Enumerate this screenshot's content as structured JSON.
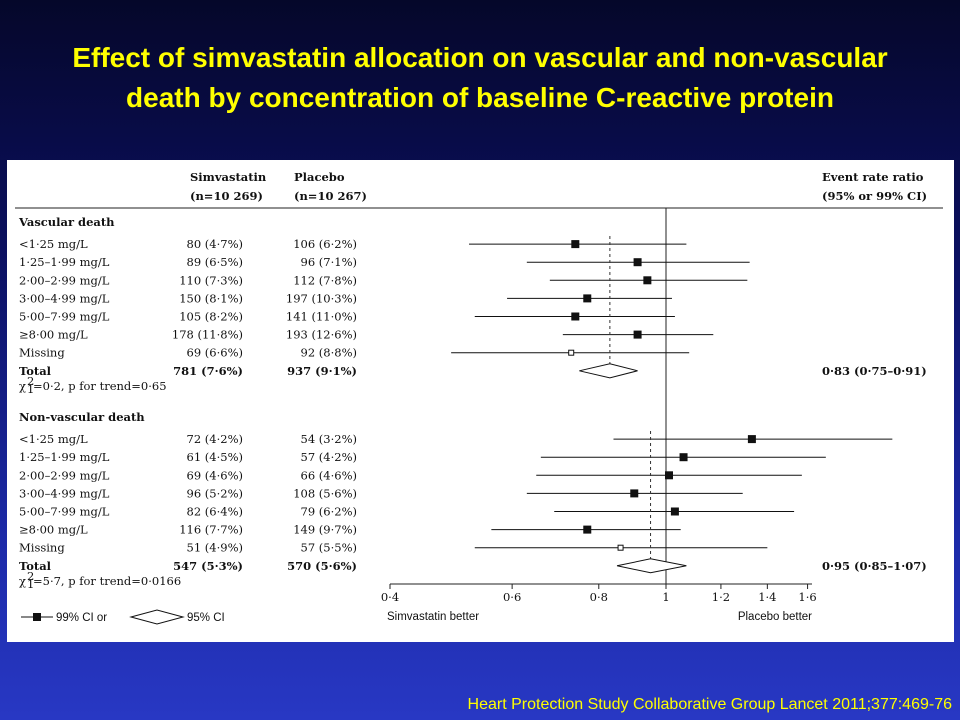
{
  "title": {
    "line1": "Effect of simvastatin allocation on vascular and non-vascular",
    "line2": "death by concentration of baseline C-reactive protein"
  },
  "citation": "Heart Protection Study Collaborative Group Lancet 2011;377:469-76",
  "chart_data": {
    "type": "forest",
    "columns": {
      "simva": "Simvastatin",
      "simva_n": "(n=10 269)",
      "placebo": "Placebo",
      "placebo_n": "(n=10 267)",
      "rr": "Event rate ratio",
      "rr_ci": "(95% or 99% CI)"
    },
    "xaxis": {
      "ticks": [
        "0·4",
        "0·6",
        "0·8",
        "1",
        "1·2",
        "1·4",
        "1·6"
      ],
      "tick_values": [
        0.4,
        0.6,
        0.8,
        1.0,
        1.2,
        1.4,
        1.6
      ],
      "scale": "log",
      "left_label": "Simvastatin better",
      "right_label": "Placebo better"
    },
    "sections": [
      {
        "heading": "Vascular death",
        "rows": [
          {
            "label": "<1·25 mg/L",
            "simva": "80 (4·7%)",
            "placebo": "106 (6·2%)",
            "rr": 0.74,
            "lo": 0.52,
            "hi": 1.07,
            "box": "filled"
          },
          {
            "label": "1·25–1·99  mg/L",
            "simva": "89 (6·5%)",
            "placebo": "96 (7·1%)",
            "rr": 0.91,
            "lo": 0.63,
            "hi": 1.32,
            "box": "filled"
          },
          {
            "label": "2·00–2·99  mg/L",
            "simva": "110 (7·3%)",
            "placebo": "112 (7·8%)",
            "rr": 0.94,
            "lo": 0.68,
            "hi": 1.31,
            "box": "filled"
          },
          {
            "label": "3·00–4·99  mg/L",
            "simva": "150 (8·1%)",
            "placebo": "197 (10·3%)",
            "rr": 0.77,
            "lo": 0.59,
            "hi": 1.02,
            "box": "filled"
          },
          {
            "label": "5·00–7·99  mg/L",
            "simva": "105 (8·2%)",
            "placebo": "141 (11·0%)",
            "rr": 0.74,
            "lo": 0.53,
            "hi": 1.03,
            "box": "filled"
          },
          {
            "label": "≥8·00 mg/L",
            "simva": "178 (11·8%)",
            "placebo": "193 (12·6%)",
            "rr": 0.91,
            "lo": 0.71,
            "hi": 1.17,
            "box": "filled"
          },
          {
            "label": "Missing",
            "simva": "69 (6·6%)",
            "placebo": "92 (8·8%)",
            "rr": 0.73,
            "lo": 0.49,
            "hi": 1.08,
            "box": "open"
          }
        ],
        "total": {
          "label": "Total",
          "simva": "781 (7·6%)",
          "placebo": "937 (9·1%)",
          "rr": 0.83,
          "lo": 0.75,
          "hi": 0.91,
          "ci_text": "0·83 (0·75–0·91)"
        },
        "trend_label": "χ",
        "trend_sub": "1",
        "trend_sup": "2",
        "trend_text": "=0·2, p for trend=0·65"
      },
      {
        "heading": "Non-vascular death",
        "rows": [
          {
            "label": "<1·25 mg/L",
            "simva": "72 (4·2%)",
            "placebo": "54 (3·2%)",
            "rr": 1.33,
            "lo": 0.84,
            "hi": 2.12,
            "box": "filled"
          },
          {
            "label": "1·25–1·99  mg/L",
            "simva": "61 (4·5%)",
            "placebo": "57 (4·2%)",
            "rr": 1.06,
            "lo": 0.66,
            "hi": 1.7,
            "box": "filled"
          },
          {
            "label": "2·00–2·99  mg/L",
            "simva": "69 (4·6%)",
            "placebo": "66 (4·6%)",
            "rr": 1.01,
            "lo": 0.65,
            "hi": 1.57,
            "box": "filled"
          },
          {
            "label": "3·00–4·99  mg/L",
            "simva": "96 (5·2%)",
            "placebo": "108 (5·6%)",
            "rr": 0.9,
            "lo": 0.63,
            "hi": 1.29,
            "box": "filled"
          },
          {
            "label": "5·00–7·99  mg/L",
            "simva": "82 (6·4%)",
            "placebo": "79 (6·2%)",
            "rr": 1.03,
            "lo": 0.69,
            "hi": 1.53,
            "box": "filled"
          },
          {
            "label": "≥8·00 mg/L",
            "simva": "116 (7·7%)",
            "placebo": "149 (9·7%)",
            "rr": 0.77,
            "lo": 0.56,
            "hi": 1.05,
            "box": "filled"
          },
          {
            "label": "Missing",
            "simva": "51 (4·9%)",
            "placebo": "57 (5·5%)",
            "rr": 0.86,
            "lo": 0.53,
            "hi": 1.4,
            "box": "open"
          }
        ],
        "total": {
          "label": "Total",
          "simva": "547 (5·3%)",
          "placebo": "570 (5·6%)",
          "rr": 0.95,
          "lo": 0.85,
          "hi": 1.07,
          "ci_text": "0·95 (0·85–1·07)"
        },
        "trend_label": "χ",
        "trend_sub": "1",
        "trend_sup": "2",
        "trend_text": "=5·7, p for trend=0·0166"
      }
    ],
    "legend": {
      "ci99": "99% CI or",
      "ci95": "95% CI"
    }
  }
}
